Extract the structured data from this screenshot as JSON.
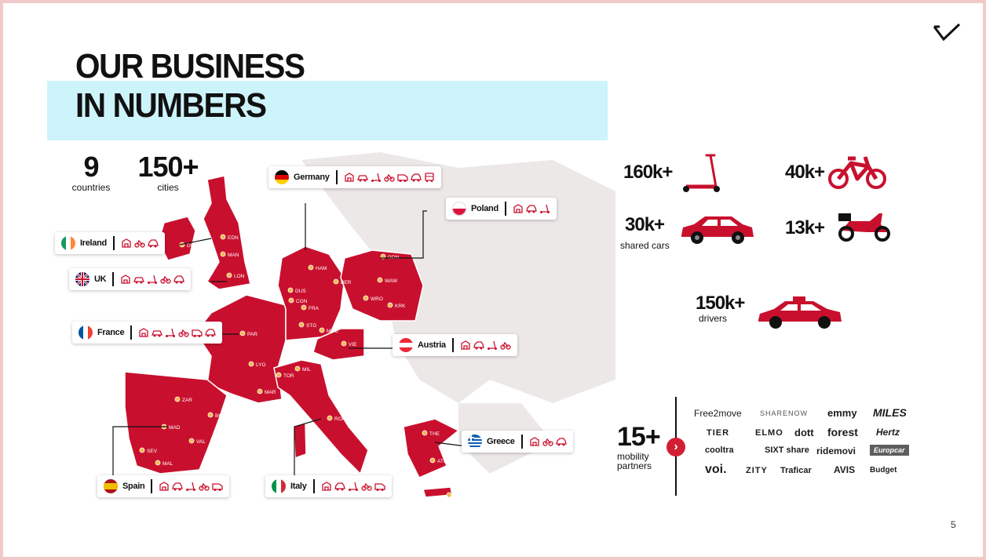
{
  "title": {
    "line1": "OUR BUSINESS",
    "line2": "IN NUMBERS"
  },
  "stats": [
    {
      "value": "9",
      "label": "countries"
    },
    {
      "value": "150+",
      "label": "cities"
    }
  ],
  "countries": [
    {
      "name": "Germany",
      "flag": "germany-flag-icon",
      "services": [
        "scooter-shop-icon",
        "car-shop-icon",
        "scooter-icon",
        "bike-icon",
        "van-icon",
        "car-icon",
        "bus-icon"
      ]
    },
    {
      "name": "Poland",
      "flag": "poland-flag-icon",
      "services": [
        "scooter-shop-icon",
        "car-icon",
        "scooter-icon"
      ]
    },
    {
      "name": "Ireland",
      "flag": "ireland-flag-icon",
      "services": [
        "scooter-shop-icon",
        "bike-icon",
        "car-icon"
      ]
    },
    {
      "name": "UK",
      "flag": "uk-flag-icon",
      "services": [
        "scooter-shop-icon",
        "car-shop-icon",
        "scooter-icon",
        "bike-icon",
        "car-icon"
      ]
    },
    {
      "name": "France",
      "flag": "france-flag-icon",
      "services": [
        "scooter-shop-icon",
        "car-shop-icon",
        "scooter-icon",
        "bike-icon",
        "van-icon",
        "car-icon"
      ]
    },
    {
      "name": "Austria",
      "flag": "austria-flag-icon",
      "services": [
        "scooter-shop-icon",
        "car-icon",
        "scooter-icon",
        "bike-icon"
      ]
    },
    {
      "name": "Greece",
      "flag": "greece-flag-icon",
      "services": [
        "scooter-shop-icon",
        "bike-icon",
        "car-icon"
      ]
    },
    {
      "name": "Spain",
      "flag": "spain-flag-icon",
      "services": [
        "scooter-shop-icon",
        "car-icon",
        "scooter-icon",
        "bike-icon",
        "van-icon"
      ]
    },
    {
      "name": "Italy",
      "flag": "italy-flag-icon",
      "services": [
        "scooter-shop-icon",
        "car-icon",
        "scooter-icon",
        "bike-icon",
        "van-icon"
      ]
    }
  ],
  "cities": [
    "DUB",
    "EDN",
    "MAN",
    "LON",
    "HAM",
    "BER",
    "DUS",
    "CGN",
    "FRA",
    "STG",
    "MUC",
    "GDN",
    "WAW",
    "WRO",
    "KRK",
    "VIE",
    "PAR",
    "LYO",
    "MAR",
    "MIL",
    "TOR",
    "ROM",
    "ZAR",
    "BCN",
    "MAD",
    "VAL",
    "SEV",
    "MAL",
    "THE",
    "ATH",
    "HER"
  ],
  "vehicles": [
    {
      "value": "160k+",
      "label": "",
      "icon": "kick-scooter-icon"
    },
    {
      "value": "40k+",
      "label": "",
      "icon": "e-bike-icon"
    },
    {
      "value": "30k+",
      "label": "shared cars",
      "icon": "car-icon"
    },
    {
      "value": "13k+",
      "label": "",
      "icon": "moped-icon"
    },
    {
      "value": "150k+",
      "label": "drivers",
      "icon": "taxi-icon"
    }
  ],
  "partners": {
    "value": "15+",
    "label": "mobility partners",
    "brands": [
      "Free2move",
      "SHARENOW",
      "emmy",
      "MILES",
      "TIER",
      "ELMO",
      "dott",
      "forest",
      "Hertz",
      "cooltra",
      "SIXT share",
      "ridemovi",
      "Europcar",
      "voi.",
      "ZITY",
      "Traficar",
      "AVIS",
      "Budget"
    ]
  },
  "colors": {
    "accent": "#d21f33",
    "band": "#cdf3fb"
  },
  "page_number": "5"
}
